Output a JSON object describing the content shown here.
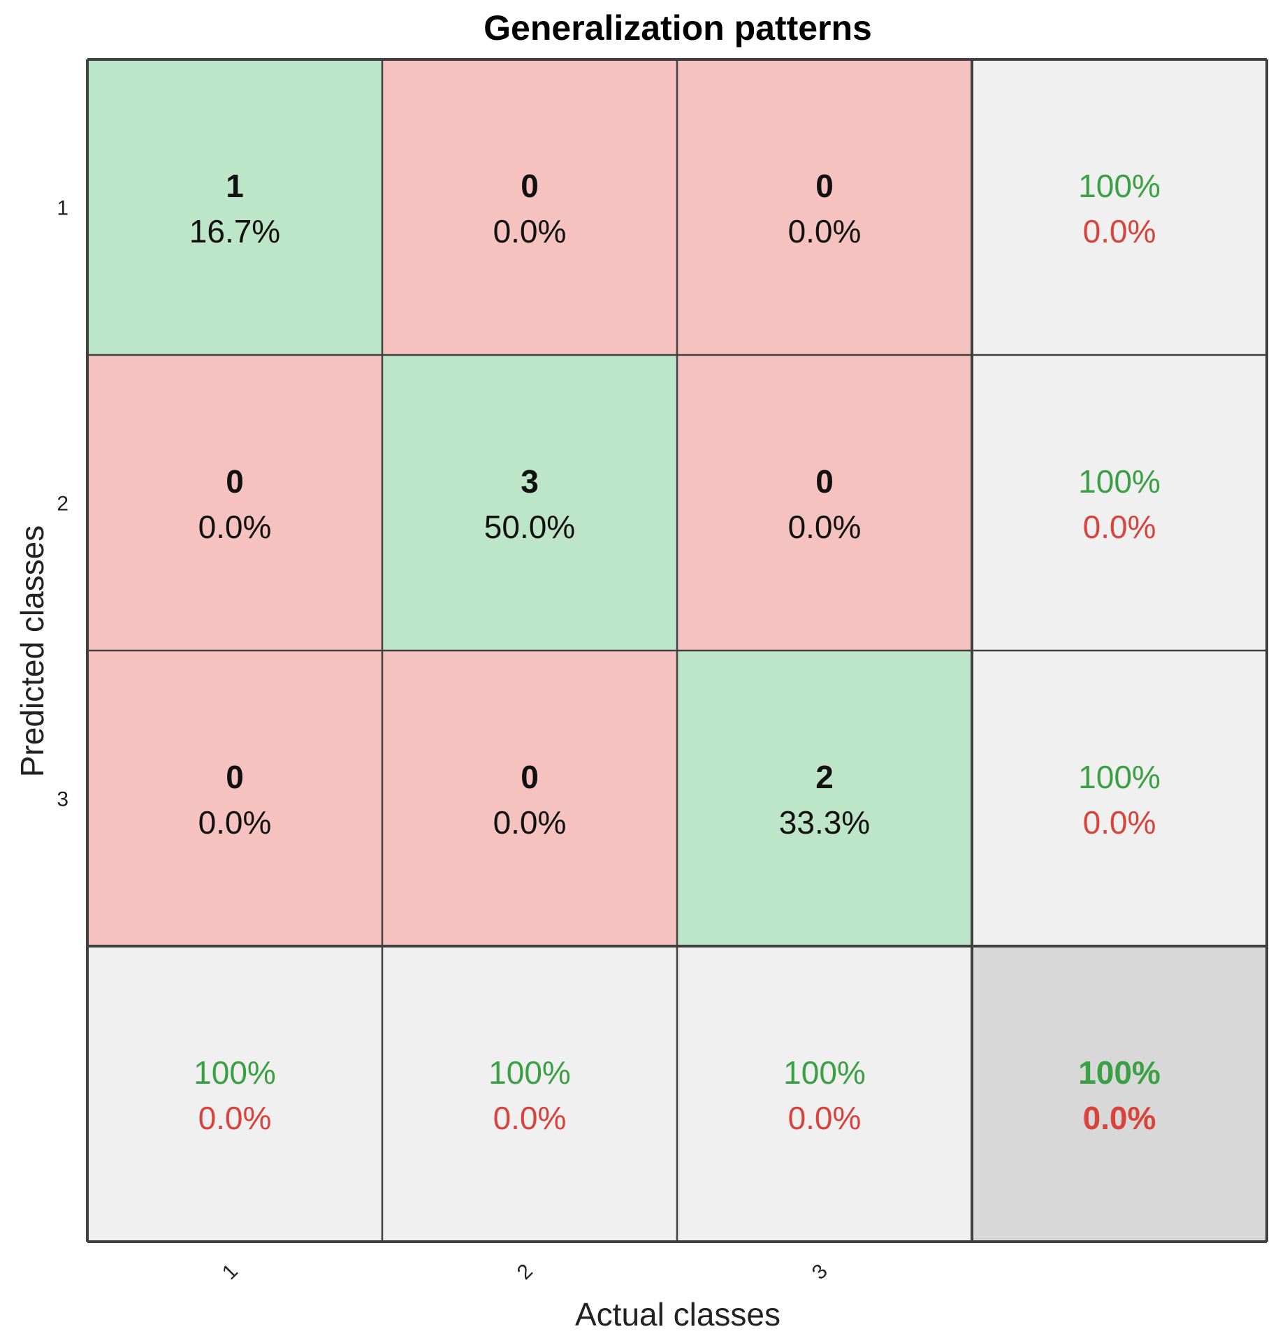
{
  "chart_data": {
    "type": "heatmap",
    "subtype": "confusion-matrix",
    "title": "Generalization patterns",
    "xlabel": "Actual classes",
    "ylabel": "Predicted classes",
    "x_tick_labels": [
      "1",
      "2",
      "3"
    ],
    "y_tick_labels": [
      "1",
      "2",
      "3"
    ],
    "counts": [
      [
        1,
        0,
        0
      ],
      [
        0,
        3,
        0
      ],
      [
        0,
        0,
        2
      ]
    ],
    "percentages": [
      [
        "16.7%",
        "0.0%",
        "0.0%"
      ],
      [
        "0.0%",
        "50.0%",
        "0.0%"
      ],
      [
        "0.0%",
        "0.0%",
        "33.3%"
      ]
    ],
    "row_summary": [
      {
        "correct": "100%",
        "incorrect": "0.0%"
      },
      {
        "correct": "100%",
        "incorrect": "0.0%"
      },
      {
        "correct": "100%",
        "incorrect": "0.0%"
      }
    ],
    "column_summary": [
      {
        "correct": "100%",
        "incorrect": "0.0%"
      },
      {
        "correct": "100%",
        "incorrect": "0.0%"
      },
      {
        "correct": "100%",
        "incorrect": "0.0%"
      }
    ],
    "overall": {
      "correct": "100%",
      "incorrect": "0.0%"
    },
    "colors": {
      "diagonal": "#bde5c8",
      "off_diagonal": "#f5c2c0",
      "summary": "#f0f0f0",
      "overall": "#d8d8d8",
      "correct_text": "#3aa043",
      "incorrect_text": "#d8443c",
      "grid": "#404040"
    }
  }
}
